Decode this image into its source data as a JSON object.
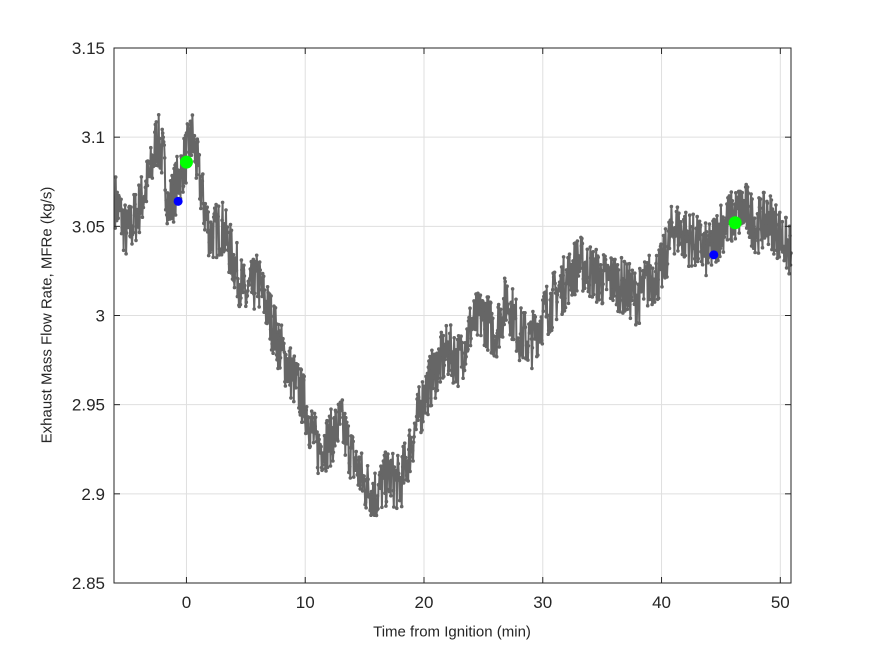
{
  "chart_data": {
    "type": "line",
    "title": "",
    "xlabel": "Time from Ignition (min)",
    "ylabel": "Exhaust Mass Flow Rate, MFRe (kg/s)",
    "xlim": [
      -6.1,
      50.9
    ],
    "ylim": [
      2.85,
      3.15
    ],
    "xticks": [
      0,
      10,
      20,
      30,
      40,
      50
    ],
    "yticks": [
      2.85,
      2.9,
      2.95,
      3.0,
      3.05,
      3.1,
      3.15
    ],
    "ytick_labels": [
      "2.85",
      "2.9",
      "2.95",
      "3",
      "3.05",
      "3.1",
      "3.15"
    ],
    "grid": true,
    "legend": null,
    "series": [
      {
        "name": "MFRe",
        "color": "#666666",
        "style": "line-with-dot-markers",
        "x": [
          -6,
          -5,
          -4,
          -3,
          -2.5,
          -2,
          -1.5,
          -1,
          -0.5,
          0,
          0.5,
          1,
          1.5,
          2,
          3,
          4,
          5,
          6,
          7,
          8,
          9,
          10,
          11,
          12,
          13,
          14,
          15,
          16,
          17,
          18,
          19,
          20,
          21,
          22,
          23,
          24,
          25,
          26,
          27,
          28,
          29,
          30,
          31,
          32,
          33,
          34,
          35,
          36,
          37,
          38,
          39,
          40,
          41,
          42,
          43,
          44,
          45,
          46,
          47,
          48,
          49,
          50,
          50.9
        ],
        "y": [
          3.065,
          3.045,
          3.06,
          3.08,
          3.1,
          3.09,
          3.06,
          3.07,
          3.08,
          3.09,
          3.1,
          3.08,
          3.06,
          3.045,
          3.05,
          3.03,
          3.01,
          3.02,
          3.0,
          2.98,
          2.965,
          2.95,
          2.925,
          2.93,
          2.94,
          2.92,
          2.905,
          2.9,
          2.91,
          2.905,
          2.93,
          2.955,
          2.97,
          2.98,
          2.975,
          2.995,
          3.0,
          2.99,
          3.01,
          2.99,
          2.985,
          3.0,
          3.01,
          3.02,
          3.03,
          3.025,
          3.02,
          3.02,
          3.015,
          3.01,
          3.02,
          3.025,
          3.05,
          3.045,
          3.04,
          3.035,
          3.05,
          3.055,
          3.06,
          3.05,
          3.055,
          3.045,
          3.035
        ]
      }
    ],
    "markers": [
      {
        "name": "green-marker-1",
        "color": "#00ff00",
        "x": 0.0,
        "y": 3.086,
        "size": "large"
      },
      {
        "name": "blue-marker-1",
        "color": "#0000ff",
        "x": -0.7,
        "y": 3.064,
        "size": "small"
      },
      {
        "name": "green-marker-2",
        "color": "#00ff00",
        "x": 46.2,
        "y": 3.052,
        "size": "large"
      },
      {
        "name": "blue-marker-2",
        "color": "#0000ff",
        "x": 44.4,
        "y": 3.034,
        "size": "small"
      }
    ]
  },
  "labels": {
    "xlabel": "Time from Ignition (min)",
    "ylabel": "Exhaust Mass Flow Rate, MFRe (kg/s)"
  }
}
